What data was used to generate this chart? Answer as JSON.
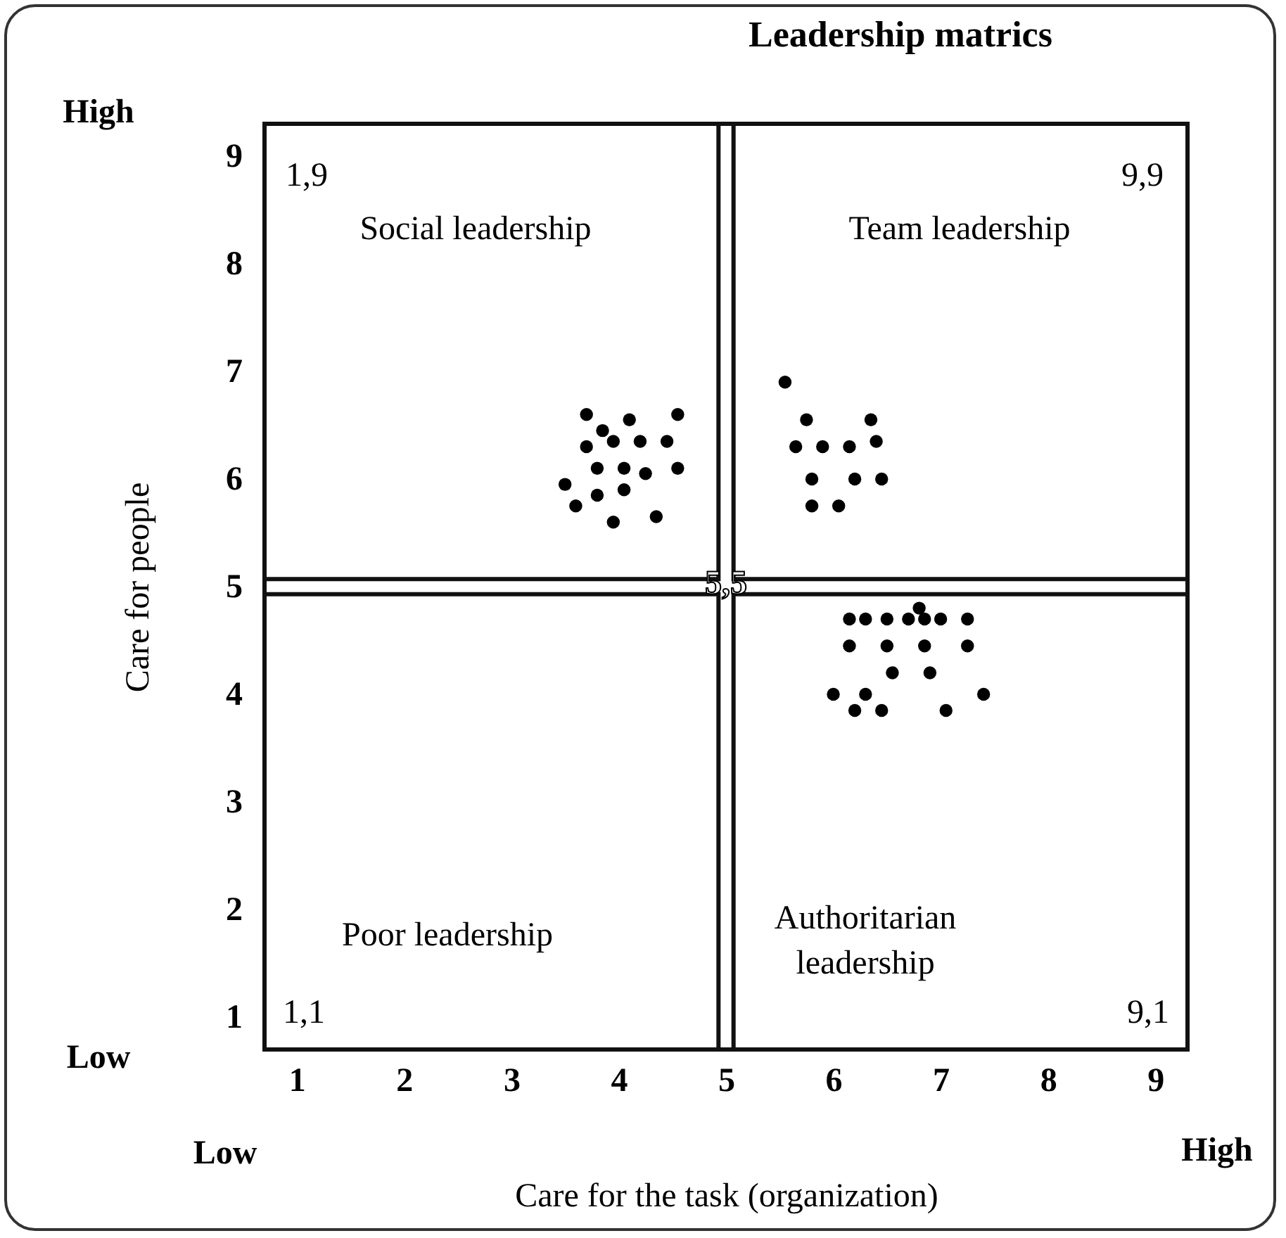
{
  "chart_data": {
    "type": "scatter",
    "title": "Leadership matrics",
    "xlabel": "Care for the task (organization)",
    "ylabel": "Care for people",
    "xlim": [
      0.7,
      9.3
    ],
    "ylim": [
      0.7,
      9.3
    ],
    "xticks": [
      1,
      2,
      3,
      4,
      5,
      6,
      7,
      8,
      9
    ],
    "yticks": [
      1,
      2,
      3,
      4,
      5,
      6,
      7,
      8,
      9
    ],
    "marker": "circle",
    "series": [
      {
        "color": "#000000",
        "x": [
          3.7,
          4.1,
          4.55,
          3.85,
          3.7,
          3.95,
          4.2,
          4.45,
          3.8,
          4.05,
          4.25,
          4.55,
          3.5,
          3.8,
          4.05,
          3.6,
          3.95,
          4.35,
          5.55,
          5.75,
          6.35,
          5.65,
          5.9,
          6.15,
          6.4,
          5.8,
          6.2,
          6.45,
          5.8,
          6.05,
          6.15,
          6.3,
          6.5,
          6.7,
          6.85,
          7.0,
          7.25,
          6.8,
          6.15,
          6.5,
          6.85,
          7.25,
          6.55,
          6.9,
          6.0,
          6.3,
          7.4,
          6.2,
          6.45,
          7.05
        ],
        "values": [
          6.6,
          6.55,
          6.6,
          6.45,
          6.3,
          6.35,
          6.35,
          6.35,
          6.1,
          6.1,
          6.05,
          6.1,
          5.95,
          5.85,
          5.9,
          5.75,
          5.6,
          5.65,
          6.9,
          6.55,
          6.55,
          6.3,
          6.3,
          6.3,
          6.35,
          6.0,
          6.0,
          6.0,
          5.75,
          5.75,
          4.7,
          4.7,
          4.7,
          4.7,
          4.7,
          4.7,
          4.7,
          4.8,
          4.45,
          4.45,
          4.45,
          4.45,
          4.2,
          4.2,
          4.0,
          4.0,
          4.0,
          3.85,
          3.85,
          3.85
        ]
      }
    ],
    "annotations": [
      "Social leadership",
      "Team leadership",
      "Poor leadership",
      "Authoritarian leadership",
      "1,9",
      "9,9",
      "5,5",
      "1,1",
      "9,1",
      "High",
      "Low",
      "Low",
      "High"
    ]
  }
}
